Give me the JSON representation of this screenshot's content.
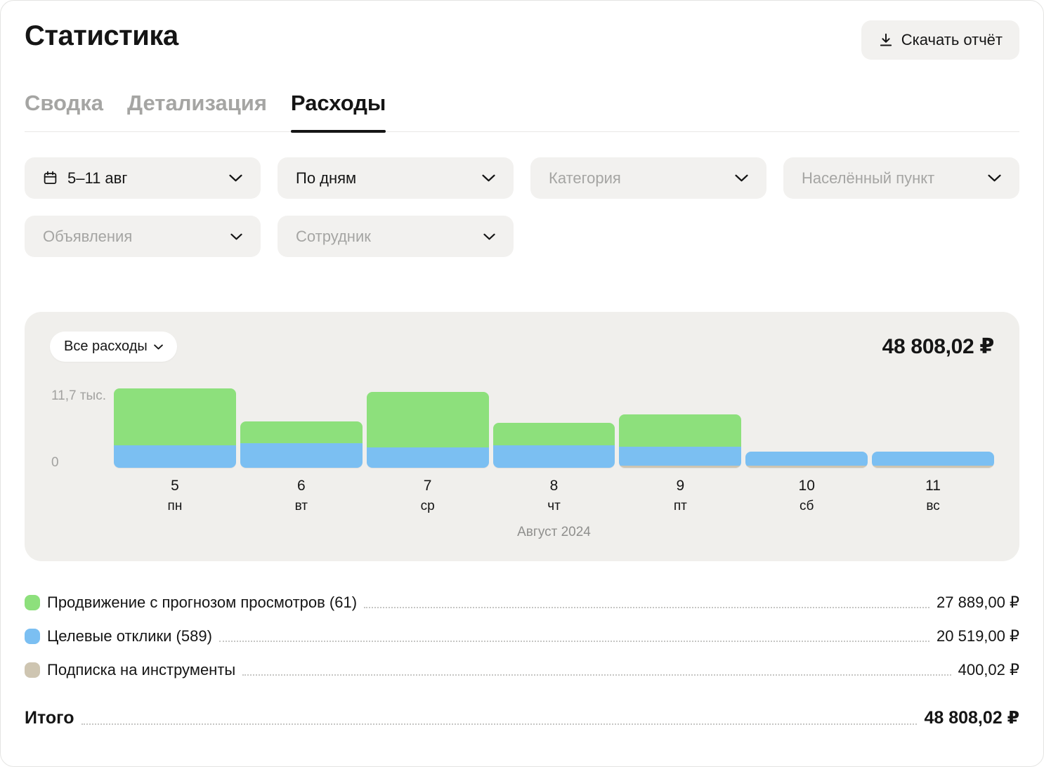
{
  "header": {
    "title": "Статистика",
    "download_label": "Скачать отчёт"
  },
  "tabs": [
    {
      "label": "Сводка",
      "active": false
    },
    {
      "label": "Детализация",
      "active": false
    },
    {
      "label": "Расходы",
      "active": true
    }
  ],
  "filters": {
    "date_range": "5–11 авг",
    "grouping": "По дням",
    "category": "Категория",
    "location": "Населённый пункт",
    "ads": "Объявления",
    "employee": "Сотрудник"
  },
  "chart": {
    "scope_label": "Все расходы",
    "total": "48 808,02 ₽",
    "y_max_label": "11,7 тыс.",
    "y_zero_label": "0",
    "caption": "Август 2024"
  },
  "chart_data": {
    "type": "bar",
    "stacked": true,
    "title": "Все расходы",
    "xlabel": "Август 2024",
    "ylabel": "",
    "ylim": [
      0,
      11700
    ],
    "grid": false,
    "legend_position": "bottom",
    "categories": [
      "5",
      "6",
      "7",
      "8",
      "9",
      "10",
      "11"
    ],
    "weekdays": [
      "пн",
      "вт",
      "ср",
      "чт",
      "пт",
      "сб",
      "вс"
    ],
    "series": [
      {
        "name": "Продвижение с прогнозом просмотров (61)",
        "color": "#8de07c",
        "values": [
          8400,
          3200,
          8200,
          3300,
          4789,
          0,
          0
        ],
        "total_label": "27 889,00 ₽"
      },
      {
        "name": "Целевые отклики (589)",
        "color": "#7bbff2",
        "values": [
          3300,
          3600,
          3000,
          3300,
          2900,
          2200,
          2219
        ],
        "total_label": "20 519,00 ₽"
      },
      {
        "name": "Подписка на инструменты",
        "color": "#cec5b1",
        "values": [
          0,
          0,
          0,
          0,
          133.34,
          133.34,
          133.34
        ],
        "total_label": "400,02 ₽"
      }
    ]
  },
  "totals": {
    "label": "Итого",
    "value": "48 808,02 ₽"
  }
}
